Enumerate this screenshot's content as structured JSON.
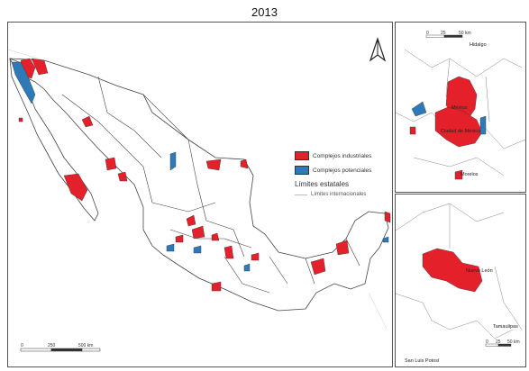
{
  "title": "2013",
  "legend": {
    "items": [
      {
        "label": "Complejos industriales",
        "color": "#e4212a"
      },
      {
        "label": "Complejos potenciales",
        "color": "#2e7ab6"
      }
    ],
    "heading": "Límites estatales",
    "line_label": "Límites internacionales"
  },
  "main_map": {
    "scale": {
      "ticks": [
        "0",
        "250",
        "500 km"
      ]
    },
    "north_symbol": "north-arrow"
  },
  "inset_top": {
    "labels": {
      "hidalgo": "Hidalgo",
      "mexico": "México",
      "ciudad": "Ciudad de México",
      "morelos": "Morelos"
    },
    "scale": {
      "ticks": [
        "0",
        "25",
        "50 km"
      ]
    }
  },
  "inset_bottom": {
    "labels": {
      "nuevo_leon": "Nuevo León",
      "tamaulipas": "Tamaulipas",
      "san_luis": "San Luis Potosí"
    },
    "scale": {
      "ticks": [
        "0",
        "25",
        "50 km"
      ]
    }
  },
  "colors": {
    "industrial": "#e4212a",
    "potential": "#2e7ab6",
    "border": "#444444",
    "faint_border": "#bbbbbb"
  }
}
